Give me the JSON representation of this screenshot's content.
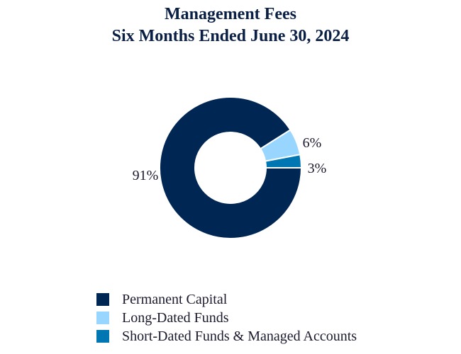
{
  "chart_data": {
    "type": "pie",
    "title": "Management Fees",
    "subtitle": "Six Months Ended June 30, 2024",
    "slices": [
      {
        "name": "Permanent Capital",
        "value": 91,
        "label": "91%",
        "color": "#002654"
      },
      {
        "name": "Long-Dated Funds",
        "value": 6,
        "label": "6%",
        "color": "#99d6ff"
      },
      {
        "name": "Short-Dated Funds & Managed Accounts",
        "value": 3,
        "label": "3%",
        "color": "#0077b3"
      }
    ],
    "legend_position": "bottom"
  }
}
